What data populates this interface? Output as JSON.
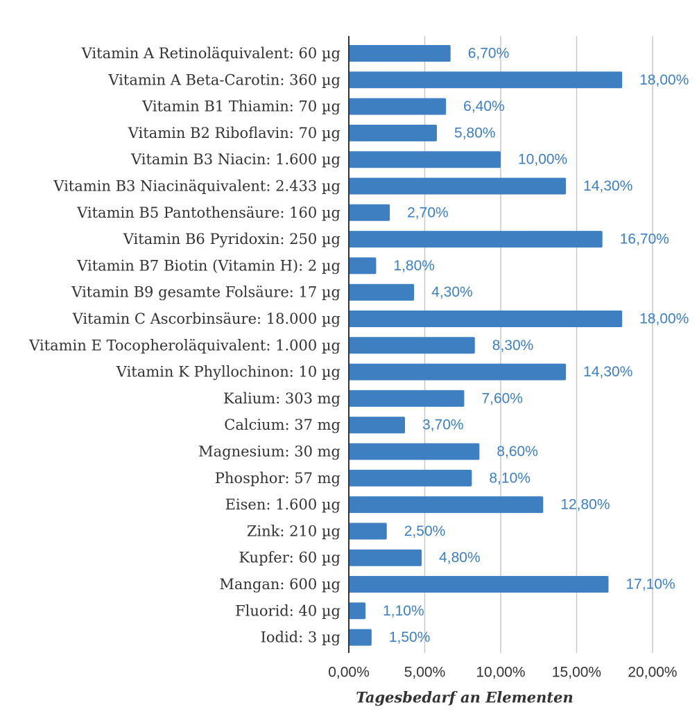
{
  "chart_data": {
    "type": "bar",
    "orientation": "horizontal",
    "categories": [
      "Vitamin A Retinoläquivalent: 60 µg",
      "Vitamin A Beta-Carotin: 360 µg",
      "Vitamin B1 Thiamin: 70 µg",
      "Vitamin B2 Riboflavin: 70 µg",
      "Vitamin B3 Niacin: 1.600 µg",
      "Vitamin B3 Niacinäquivalent: 2.433 µg",
      "Vitamin B5 Pantothensäure: 160 µg",
      "Vitamin B6 Pyridoxin: 250 µg",
      "Vitamin B7 Biotin (Vitamin H): 2 µg",
      "Vitamin B9 gesamte Folsäure: 17 µg",
      "Vitamin C Ascorbinsäure: 18.000 µg",
      "Vitamin E Tocopheroläquivalent: 1.000 µg",
      "Vitamin K Phyllochinon: 10 µg",
      "Kalium: 303 mg",
      "Calcium: 37 mg",
      "Magnesium: 30 mg",
      "Phosphor: 57 mg",
      "Eisen: 1.600 µg",
      "Zink: 210 µg",
      "Kupfer: 60 µg",
      "Mangan: 600 µg",
      "Fluorid: 40 µg",
      "Iodid: 3 µg"
    ],
    "values": [
      6.7,
      18.0,
      6.4,
      5.8,
      10.0,
      14.3,
      2.7,
      16.7,
      1.8,
      4.3,
      18.0,
      8.3,
      14.3,
      7.6,
      3.7,
      8.6,
      8.1,
      12.8,
      2.5,
      4.8,
      17.1,
      1.1,
      1.5
    ],
    "value_labels": [
      "6,70%",
      "18,00%",
      "6,40%",
      "5,80%",
      "10,00%",
      "14,30%",
      "2,70%",
      "16,70%",
      "1,80%",
      "4,30%",
      "18,00%",
      "8,30%",
      "14,30%",
      "7,60%",
      "3,70%",
      "8,60%",
      "8,10%",
      "12,80%",
      "2,50%",
      "4,80%",
      "17,10%",
      "1,10%",
      "1,50%"
    ],
    "xticks": [
      0,
      5,
      10,
      15,
      20
    ],
    "xtick_labels": [
      "0,00%",
      "5,00%",
      "10,00%",
      "15,00%",
      "20,00%"
    ],
    "xlim": [
      0,
      20
    ],
    "xlabel": "Tagesbedarf an Elementen",
    "title": "",
    "grid": "vertical",
    "bar_color": "#3d7fc1",
    "label_color": "#3d7fc1",
    "gridline_color": "#c8c8c8",
    "axis_color": "#333333"
  }
}
